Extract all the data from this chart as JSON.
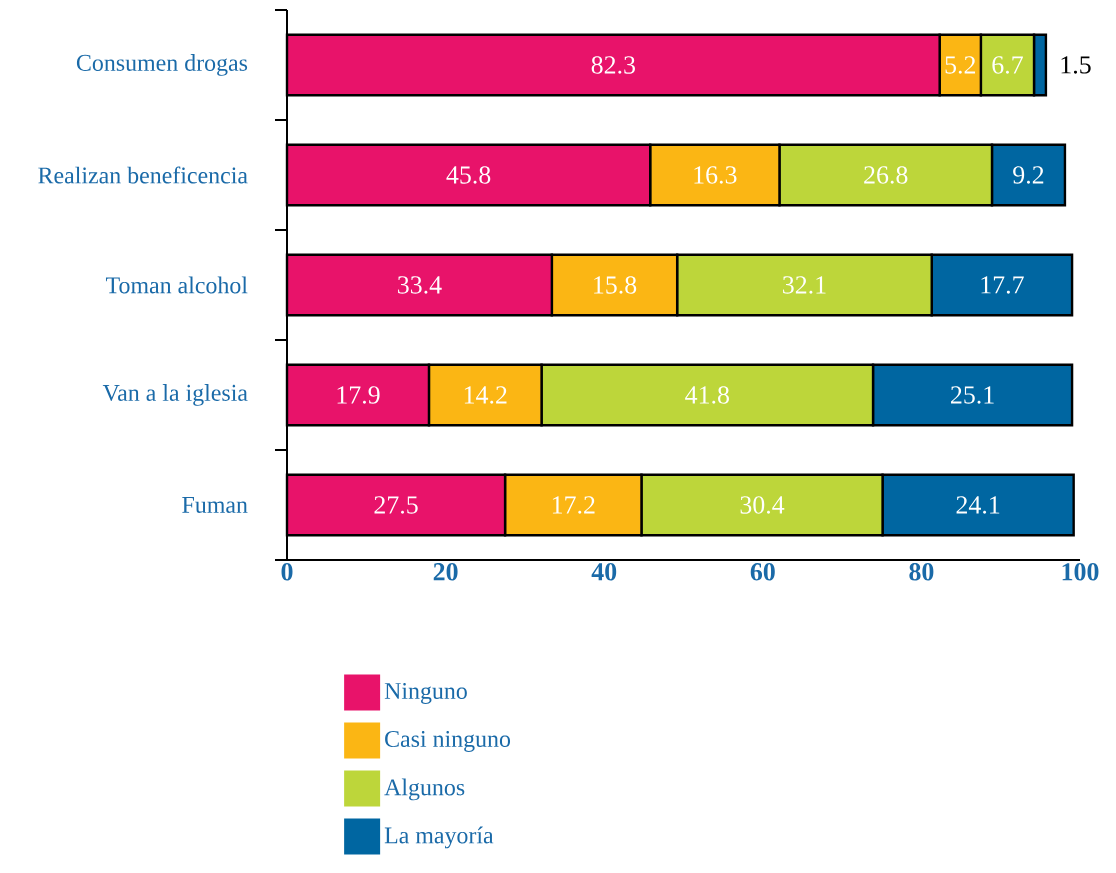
{
  "chart_data": {
    "type": "bar",
    "orientation": "horizontal",
    "stacked": true,
    "data_labels": true,
    "legend": "bottom",
    "categories": [
      "Consumen drogas",
      "Realizan beneficencia",
      "Toman alcohol",
      "Van a la iglesia",
      "Fuman"
    ],
    "series": [
      {
        "name": "Ninguno",
        "color": "#e8136a",
        "values": [
          82.3,
          45.8,
          33.4,
          17.9,
          27.5
        ]
      },
      {
        "name": "Casi ninguno",
        "color": "#fbb614",
        "values": [
          5.2,
          16.3,
          15.8,
          14.2,
          17.2
        ]
      },
      {
        "name": "Algunos",
        "color": "#bdd63a",
        "values": [
          6.7,
          26.8,
          32.1,
          41.8,
          30.4
        ]
      },
      {
        "name": "La mayoría",
        "color": "#0066a1",
        "values": [
          1.5,
          9.2,
          17.7,
          25.1,
          24.1
        ]
      }
    ],
    "xlim": [
      0,
      100
    ],
    "xticks": [
      0,
      20,
      40,
      60,
      80,
      100
    ]
  }
}
